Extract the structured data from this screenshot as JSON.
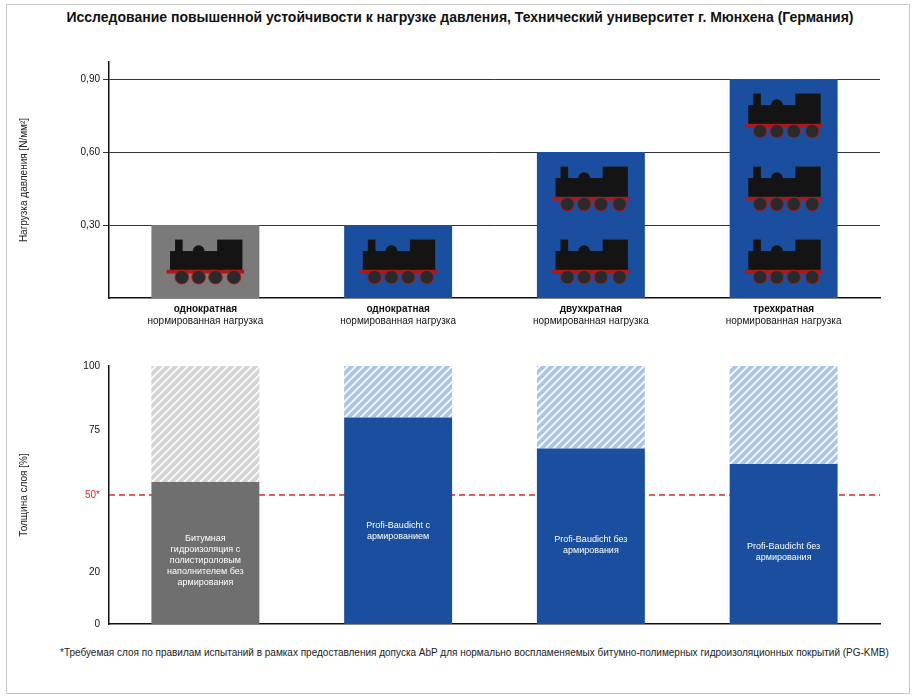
{
  "title": "Исследование повышенной устойчивости к нагрузке давления, Технический университет г. Мюнхена (Германия)",
  "footnote": "*Требуемая слоя по правилам испытаний в рамках предоставления допуска AbP для нормально воспламеняемых битумно-полимерных гидроизоляционных покрытий (PG-KMB)",
  "chart_data": [
    {
      "type": "bar",
      "y_label": "Нагрузка давления [N/мм²]",
      "categories": [
        "однократная нормированная нагрузка",
        "однократная нормированная нагрузка",
        "двухкратная нормированная нагрузка",
        "трехкратная нормированная нагрузка"
      ],
      "values": [
        0.3,
        0.3,
        0.6,
        0.9
      ],
      "colors": [
        "#7a7a7a",
        "#1a4e9f",
        "#1a4e9f",
        "#1a4e9f"
      ],
      "ylim": [
        0,
        0.97
      ],
      "yticks": [
        {
          "value": 0.3,
          "label": "0,30"
        },
        {
          "value": 0.6,
          "label": "0,60"
        },
        {
          "value": 0.9,
          "label": "0,90"
        }
      ],
      "grid": true,
      "tick_labels": "y"
    },
    {
      "type": "bar",
      "stacked": true,
      "y_label": "Толщина слоя [%]",
      "series": [
        {
          "values": [
            55,
            80,
            68,
            62
          ],
          "colors": [
            "#6f6f6f",
            "#1a4e9f",
            "#1a4e9f",
            "#1a4e9f"
          ],
          "labels": [
            "Битумная гидроизоляция с полистироловым наполнителем без армирования",
            "Profi-Baudicht с армированием",
            "Profi-Baudicht без армирования",
            "Profi-Baudicht без армирования"
          ]
        },
        {
          "values": [
            45,
            20,
            32,
            38
          ],
          "colors": [
            "#d4d4d4",
            "#a9c6ea",
            "#a9c6ea",
            "#a9c6ea"
          ]
        }
      ],
      "threshold": 50,
      "ylim": [
        0,
        100
      ],
      "yticks": [
        0,
        20,
        {
          "value": 50,
          "label": "50*"
        },
        75,
        100
      ],
      "grid": false,
      "tick_labels": "y"
    }
  ]
}
